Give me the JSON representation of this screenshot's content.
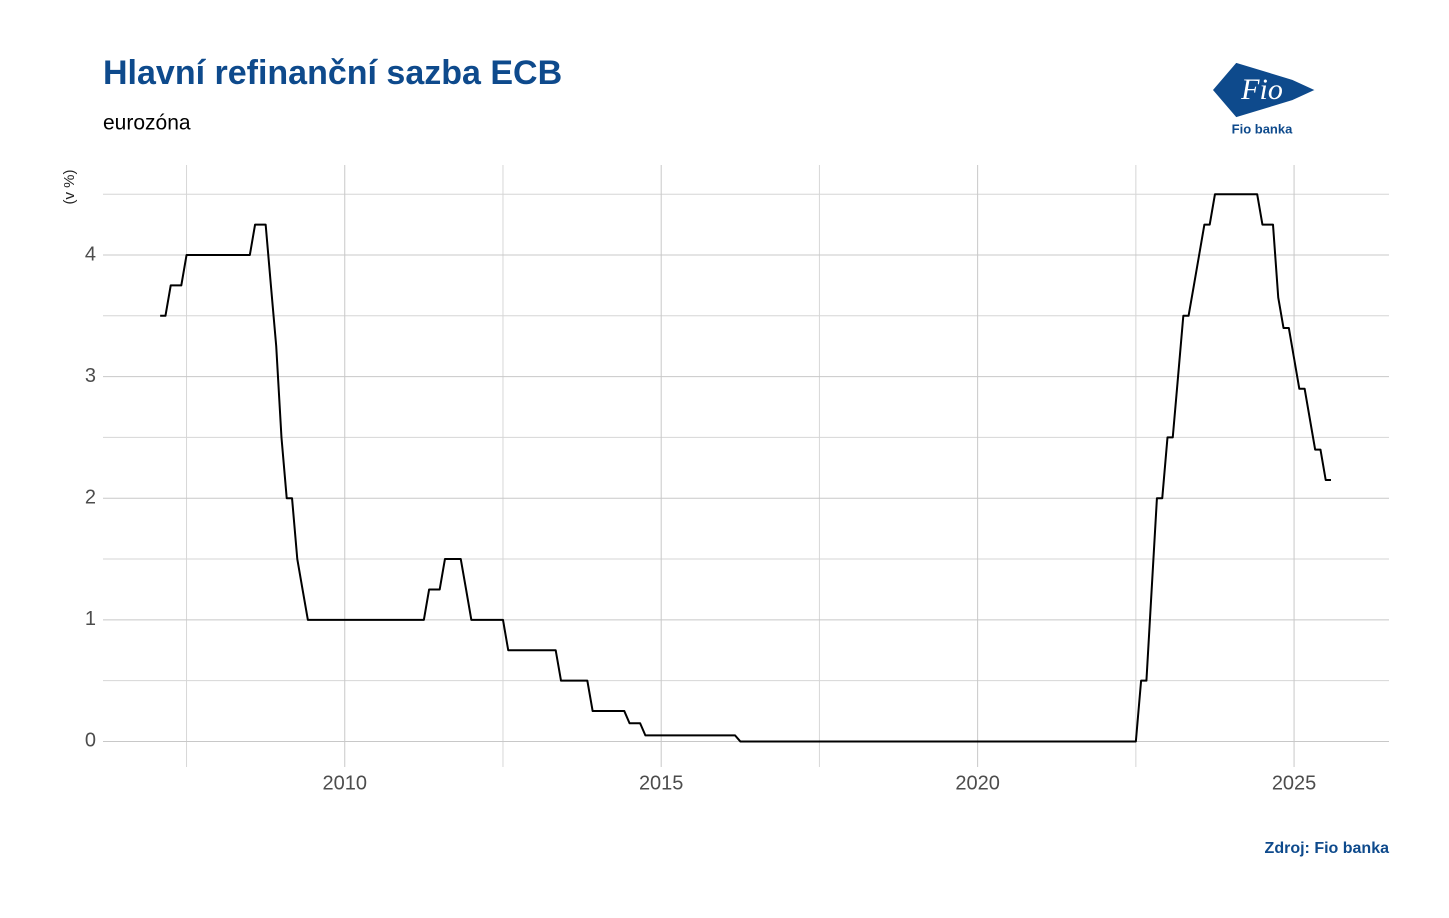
{
  "chart_data": {
    "type": "line",
    "title": "Hlavní refinanční sazba ECB",
    "subtitle": "eurozóna",
    "y_label": "(v %)",
    "source": "Zdroj: Fio banka",
    "logo": {
      "mark": "Fio",
      "name": "Fio banka"
    },
    "x": [
      2007.083,
      2007.167,
      2007.25,
      2007.417,
      2007.5,
      2008.5,
      2008.583,
      2008.75,
      2008.833,
      2008.917,
      2009.0,
      2009.083,
      2009.167,
      2009.25,
      2009.333,
      2009.417,
      2011.25,
      2011.333,
      2011.5,
      2011.583,
      2011.833,
      2011.917,
      2012.0,
      2012.5,
      2012.583,
      2013.333,
      2013.417,
      2013.833,
      2013.917,
      2014.417,
      2014.5,
      2014.667,
      2014.75,
      2016.167,
      2016.25,
      2022.5,
      2022.583,
      2022.667,
      2022.75,
      2022.833,
      2022.917,
      2023.0,
      2023.083,
      2023.167,
      2023.25,
      2023.333,
      2023.417,
      2023.5,
      2023.583,
      2023.667,
      2023.75,
      2024.417,
      2024.5,
      2024.667,
      2024.75,
      2024.833,
      2024.917,
      2025.0,
      2025.083,
      2025.167,
      2025.25,
      2025.333,
      2025.417,
      2025.5,
      2025.583
    ],
    "series": [
      {
        "color": "#000000",
        "values": [
          3.5,
          3.5,
          3.75,
          3.75,
          4.0,
          4.0,
          4.25,
          4.25,
          3.75,
          3.25,
          2.5,
          2.0,
          2.0,
          1.5,
          1.25,
          1.0,
          1.0,
          1.25,
          1.25,
          1.5,
          1.5,
          1.25,
          1.0,
          1.0,
          0.75,
          0.75,
          0.5,
          0.5,
          0.25,
          0.25,
          0.15,
          0.15,
          0.05,
          0.05,
          0,
          0,
          0.5,
          0.5,
          1.25,
          2.0,
          2.0,
          2.5,
          2.5,
          3.0,
          3.5,
          3.5,
          3.75,
          4.0,
          4.25,
          4.25,
          4.5,
          4.5,
          4.25,
          4.25,
          3.65,
          3.4,
          3.4,
          3.15,
          2.9,
          2.9,
          2.65,
          2.4,
          2.4,
          2.15,
          2.15
        ]
      }
    ],
    "xlim": [
      2006.18,
      2026.5
    ],
    "xticks": [
      2010,
      2015,
      2020,
      2025
    ],
    "ylim": [
      -0.21,
      4.74
    ],
    "yticks": [
      0,
      1,
      2,
      3,
      4
    ],
    "x_minor_grid": [
      2007.5,
      2012.5,
      2017.5,
      2022.5
    ],
    "y_minor_grid": [
      0.5,
      1.5,
      2.5,
      3.5,
      4.5
    ],
    "grid": true
  }
}
